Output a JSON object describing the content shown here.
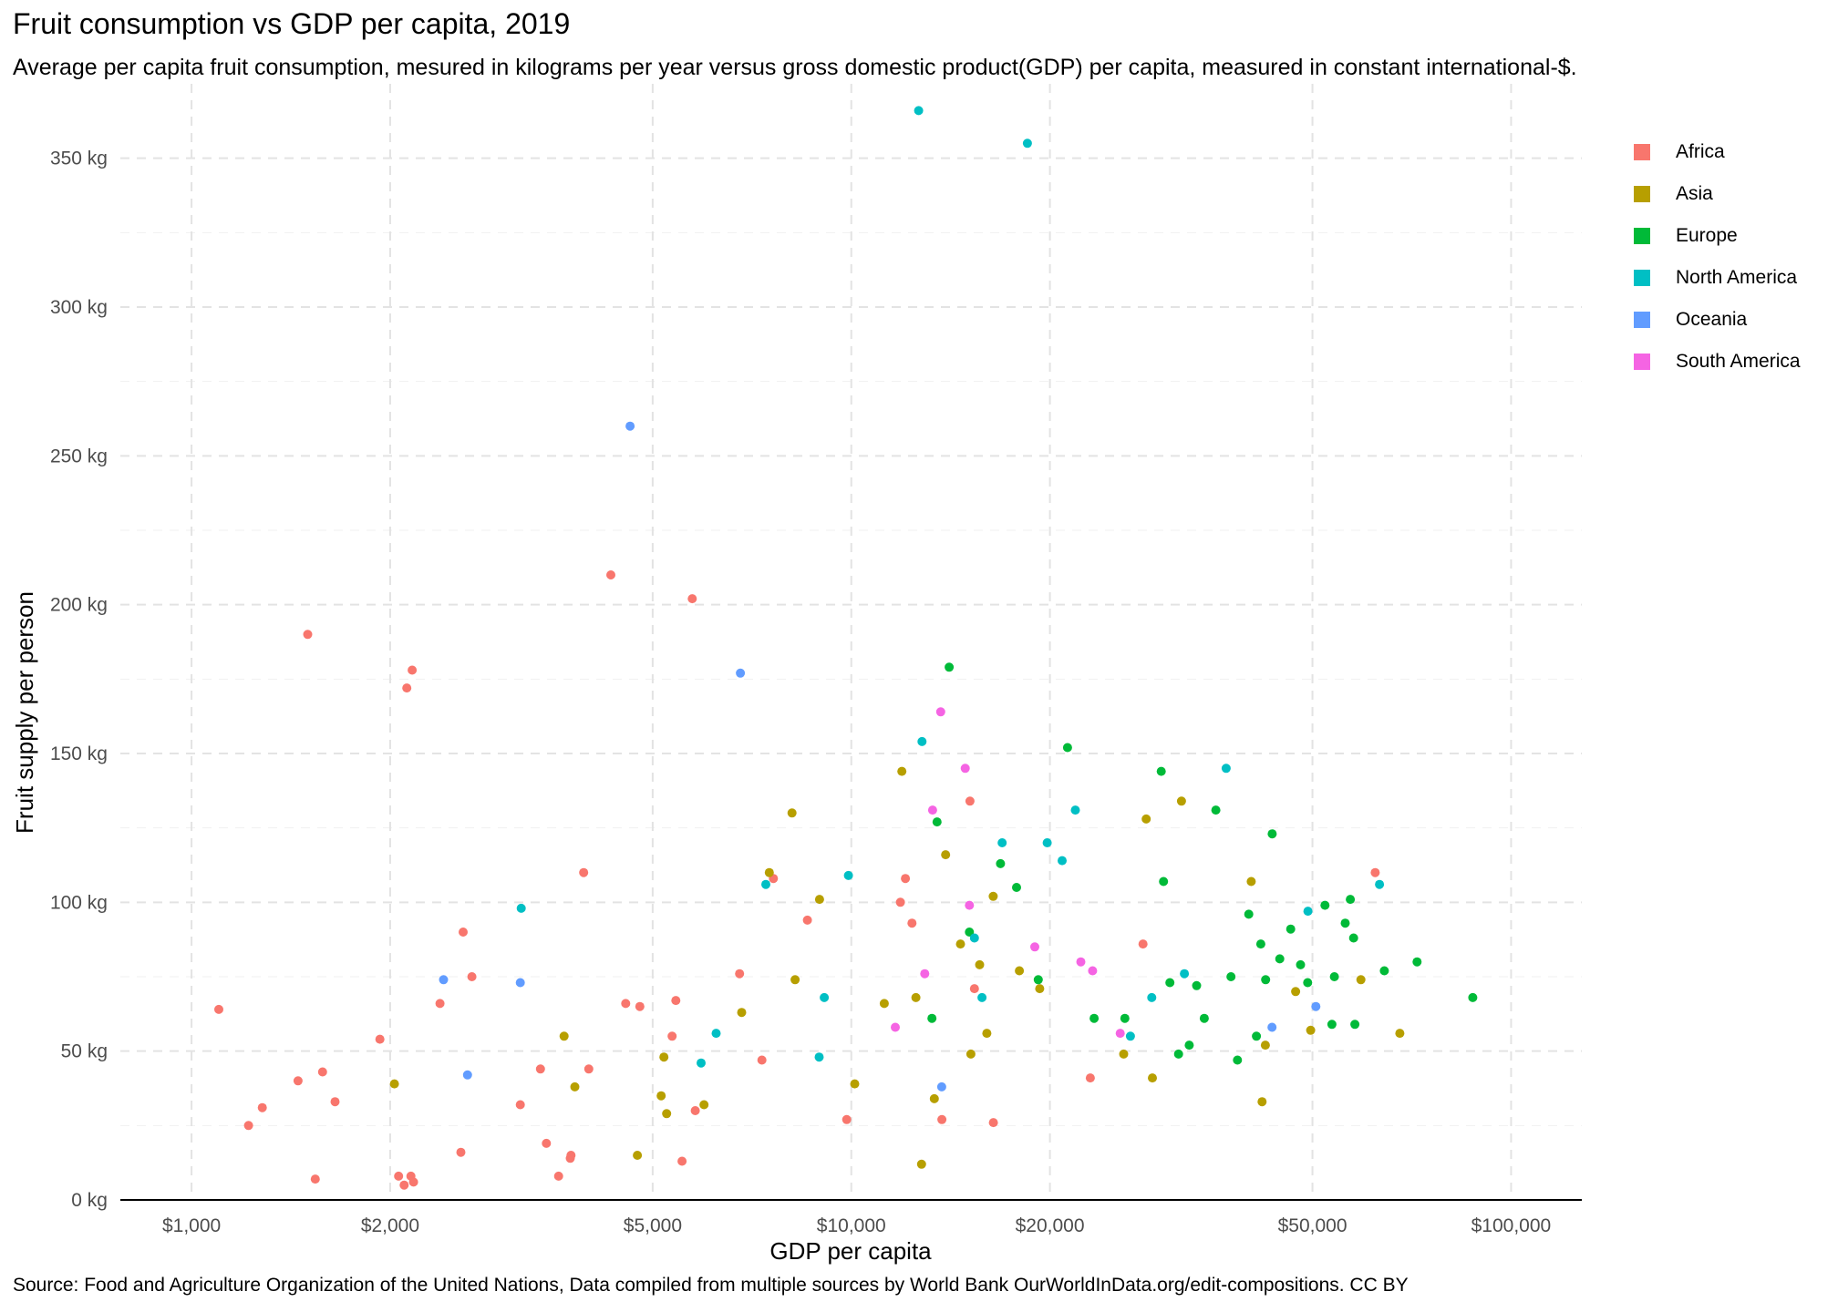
{
  "chart_data": {
    "type": "scatter",
    "title": "Fruit consumption vs GDP per capita, 2019",
    "subtitle": "Average per capita fruit consumption, mesured in kilograms per year versus gross domestic product(GDP) per capita, measured in constant international-$.",
    "xlabel": "GDP per capita",
    "ylabel": "Fruit supply per person",
    "source": "Source: Food and Agriculture Organization of the United Nations, Data compiled from multiple sources by World Bank OurWorldInData.org/edit-compositions. CC BY",
    "x_scale": "log",
    "xlim": [
      780,
      128000
    ],
    "ylim": [
      0,
      375
    ],
    "x_ticks": [
      1000,
      2000,
      5000,
      10000,
      20000,
      50000,
      100000
    ],
    "x_tick_labels": [
      "$1,000",
      "$2,000",
      "$5,000",
      "$10,000",
      "$20,000",
      "$50,000",
      "$100,000"
    ],
    "y_ticks": [
      0,
      50,
      100,
      150,
      200,
      250,
      300,
      350
    ],
    "y_tick_labels": [
      "0 kg",
      "50 kg",
      "100 kg",
      "150 kg",
      "200 kg",
      "250 kg",
      "300 kg",
      "350 kg"
    ],
    "grid": true,
    "legend_position": "right",
    "series": [
      {
        "name": "Africa",
        "color": "#F8766D",
        "points": [
          [
            1100,
            64
          ],
          [
            1220,
            25
          ],
          [
            1280,
            31
          ],
          [
            1450,
            40
          ],
          [
            1500,
            190
          ],
          [
            1540,
            7
          ],
          [
            1580,
            43
          ],
          [
            1650,
            33
          ],
          [
            1930,
            54
          ],
          [
            2060,
            8
          ],
          [
            2100,
            5
          ],
          [
            2120,
            172
          ],
          [
            2160,
            178
          ],
          [
            2150,
            8
          ],
          [
            2170,
            6
          ],
          [
            2380,
            66
          ],
          [
            2580,
            90
          ],
          [
            2560,
            16
          ],
          [
            2660,
            75
          ],
          [
            3150,
            32
          ],
          [
            3380,
            44
          ],
          [
            3450,
            19
          ],
          [
            3600,
            8
          ],
          [
            3750,
            14
          ],
          [
            3760,
            15
          ],
          [
            3930,
            110
          ],
          [
            4000,
            44
          ],
          [
            4320,
            210
          ],
          [
            4550,
            66
          ],
          [
            4780,
            65
          ],
          [
            5350,
            55
          ],
          [
            5420,
            67
          ],
          [
            5540,
            13
          ],
          [
            5740,
            202
          ],
          [
            5800,
            30
          ],
          [
            6770,
            76
          ],
          [
            7320,
            47
          ],
          [
            7620,
            108
          ],
          [
            8580,
            94
          ],
          [
            9840,
            27
          ],
          [
            11870,
            100
          ],
          [
            12080,
            108
          ],
          [
            12360,
            93
          ],
          [
            13720,
            27
          ],
          [
            15130,
            134
          ],
          [
            15370,
            71
          ],
          [
            16420,
            26
          ],
          [
            23030,
            41
          ],
          [
            27680,
            86
          ],
          [
            62250,
            110
          ]
        ]
      },
      {
        "name": "Asia",
        "color": "#B79F00",
        "points": [
          [
            2030,
            39
          ],
          [
            3670,
            55
          ],
          [
            3810,
            38
          ],
          [
            4740,
            15
          ],
          [
            5150,
            35
          ],
          [
            5200,
            48
          ],
          [
            5250,
            29
          ],
          [
            5980,
            32
          ],
          [
            6820,
            63
          ],
          [
            7510,
            110
          ],
          [
            8130,
            130
          ],
          [
            8220,
            74
          ],
          [
            8950,
            101
          ],
          [
            10120,
            39
          ],
          [
            11220,
            66
          ],
          [
            11930,
            144
          ],
          [
            12530,
            68
          ],
          [
            12780,
            12
          ],
          [
            13360,
            34
          ],
          [
            13900,
            116
          ],
          [
            14640,
            86
          ],
          [
            15180,
            49
          ],
          [
            15650,
            79
          ],
          [
            16050,
            56
          ],
          [
            16410,
            102
          ],
          [
            17980,
            77
          ],
          [
            19300,
            71
          ],
          [
            25870,
            49
          ],
          [
            27990,
            128
          ],
          [
            28600,
            41
          ],
          [
            31650,
            134
          ],
          [
            40380,
            107
          ],
          [
            41940,
            33
          ],
          [
            42420,
            52
          ],
          [
            47140,
            70
          ],
          [
            49680,
            57
          ],
          [
            59210,
            74
          ],
          [
            67830,
            56
          ]
        ]
      },
      {
        "name": "Europe",
        "color": "#00BA38",
        "points": [
          [
            13250,
            61
          ],
          [
            13490,
            127
          ],
          [
            14070,
            179
          ],
          [
            15100,
            90
          ],
          [
            16830,
            113
          ],
          [
            17800,
            105
          ],
          [
            19200,
            74
          ],
          [
            21270,
            152
          ],
          [
            23340,
            61
          ],
          [
            25980,
            61
          ],
          [
            29500,
            144
          ],
          [
            29730,
            107
          ],
          [
            30400,
            73
          ],
          [
            31330,
            49
          ],
          [
            32520,
            52
          ],
          [
            33370,
            72
          ],
          [
            34280,
            61
          ],
          [
            35690,
            131
          ],
          [
            37630,
            75
          ],
          [
            38490,
            47
          ],
          [
            40030,
            96
          ],
          [
            41120,
            55
          ],
          [
            41750,
            86
          ],
          [
            42460,
            74
          ],
          [
            43450,
            123
          ],
          [
            44600,
            81
          ],
          [
            46340,
            91
          ],
          [
            47970,
            79
          ],
          [
            49170,
            73
          ],
          [
            52240,
            99
          ],
          [
            53510,
            59
          ],
          [
            53970,
            75
          ],
          [
            56060,
            93
          ],
          [
            57070,
            101
          ],
          [
            57720,
            88
          ],
          [
            57980,
            59
          ],
          [
            64250,
            77
          ],
          [
            72020,
            80
          ],
          [
            87490,
            68
          ]
        ]
      },
      {
        "name": "North America",
        "color": "#00BFC4",
        "points": [
          [
            3160,
            98
          ],
          [
            5920,
            46
          ],
          [
            6240,
            56
          ],
          [
            7420,
            106
          ],
          [
            8940,
            48
          ],
          [
            9100,
            68
          ],
          [
            9900,
            109
          ],
          [
            12650,
            366
          ],
          [
            12800,
            154
          ],
          [
            15370,
            88
          ],
          [
            15780,
            68
          ],
          [
            16930,
            120
          ],
          [
            18490,
            355
          ],
          [
            19810,
            120
          ],
          [
            20870,
            114
          ],
          [
            21860,
            131
          ],
          [
            26490,
            55
          ],
          [
            28540,
            68
          ],
          [
            31980,
            76
          ],
          [
            37000,
            145
          ],
          [
            49220,
            97
          ],
          [
            63180,
            106
          ]
        ]
      },
      {
        "name": "Oceania",
        "color": "#619CFF",
        "points": [
          [
            2410,
            74
          ],
          [
            2620,
            42
          ],
          [
            3150,
            73
          ],
          [
            4620,
            260
          ],
          [
            6790,
            177
          ],
          [
            13710,
            38
          ],
          [
            43420,
            58
          ],
          [
            50600,
            65
          ]
        ]
      },
      {
        "name": "South America",
        "color": "#F564E3",
        "points": [
          [
            11660,
            58
          ],
          [
            12920,
            76
          ],
          [
            13280,
            131
          ],
          [
            13660,
            164
          ],
          [
            14880,
            145
          ],
          [
            15100,
            99
          ],
          [
            18970,
            85
          ],
          [
            22280,
            80
          ],
          [
            23210,
            77
          ],
          [
            25560,
            56
          ]
        ]
      }
    ]
  }
}
